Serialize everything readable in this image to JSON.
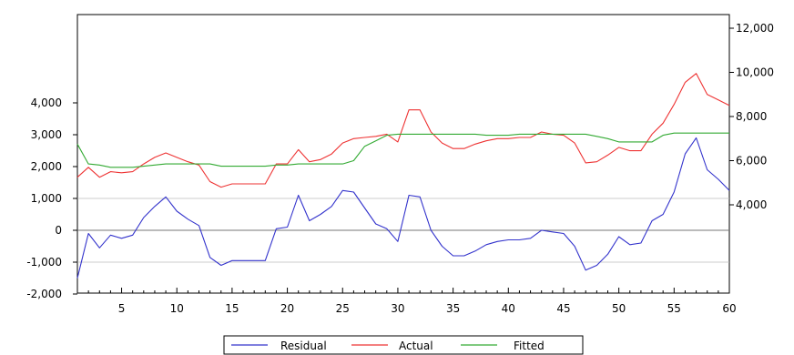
{
  "chart_data": {
    "type": "line",
    "x": [
      1,
      2,
      3,
      4,
      5,
      6,
      7,
      8,
      9,
      10,
      11,
      12,
      13,
      14,
      15,
      16,
      17,
      18,
      19,
      20,
      21,
      22,
      23,
      24,
      25,
      26,
      27,
      28,
      29,
      30,
      31,
      32,
      33,
      34,
      35,
      36,
      37,
      38,
      39,
      40,
      41,
      42,
      43,
      44,
      45,
      46,
      47,
      48,
      49,
      50,
      51,
      52,
      53,
      54,
      55,
      56,
      57,
      58,
      59,
      60
    ],
    "x_ticks": [
      5,
      10,
      15,
      20,
      25,
      30,
      35,
      40,
      45,
      50,
      55,
      60
    ],
    "xlim": [
      1,
      60
    ],
    "left_axis": {
      "ticks": [
        -2000,
        -1000,
        0,
        1000,
        2000,
        3000,
        4000
      ],
      "tick_labels": [
        "-2,000",
        "-1,000",
        "0",
        "1,000",
        "2,000",
        "3,000",
        "4,000"
      ],
      "range": [
        -2000,
        7000
      ]
    },
    "right_axis": {
      "ticks": [
        4000,
        6000,
        8000,
        10000,
        12000
      ],
      "tick_labels": [
        "4,000",
        "6,000",
        "8,000",
        "10,000",
        "12,000"
      ],
      "range": [
        0,
        12000
      ]
    },
    "grid_lines": [
      -1000,
      0,
      1000
    ],
    "series": [
      {
        "name": "Residual",
        "axis": "left",
        "color": "#3333cc",
        "values": [
          -1500,
          -100,
          -550,
          -150,
          -250,
          -150,
          400,
          750,
          1050,
          600,
          350,
          150,
          -850,
          -1100,
          -950,
          -950,
          -950,
          -950,
          50,
          100,
          1100,
          300,
          500,
          750,
          1250,
          1200,
          700,
          200,
          50,
          -350,
          1100,
          1050,
          0,
          -500,
          -800,
          -800,
          -650,
          -450,
          -350,
          -300,
          -300,
          -250,
          0,
          -50,
          -100,
          -500,
          -1250,
          -1100,
          -750,
          -200,
          -450,
          -400,
          300,
          500,
          1200,
          2400,
          2900,
          1900,
          1600,
          1250
        ]
      },
      {
        "name": "Actual",
        "axis": "right",
        "color": "#ee3333",
        "values": [
          5250,
          5700,
          5250,
          5500,
          5450,
          5500,
          5850,
          6150,
          6350,
          6150,
          5950,
          5800,
          5050,
          4800,
          4950,
          4950,
          4950,
          4950,
          5850,
          5850,
          6500,
          5950,
          6050,
          6300,
          6800,
          7000,
          7050,
          7100,
          7200,
          6850,
          8300,
          8300,
          7300,
          6800,
          6550,
          6550,
          6750,
          6900,
          7000,
          7000,
          7050,
          7050,
          7300,
          7200,
          7150,
          6800,
          5900,
          5950,
          6250,
          6600,
          6450,
          6450,
          7200,
          7700,
          8550,
          9550,
          9950,
          9000,
          8750,
          8500
        ]
      },
      {
        "name": "Fitted",
        "axis": "right",
        "color": "#33aa33",
        "values": [
          6750,
          5850,
          5800,
          5700,
          5700,
          5700,
          5750,
          5800,
          5850,
          5850,
          5850,
          5850,
          5850,
          5750,
          5750,
          5750,
          5750,
          5750,
          5800,
          5800,
          5850,
          5850,
          5850,
          5850,
          5850,
          6000,
          6650,
          6900,
          7150,
          7200,
          7200,
          7200,
          7200,
          7200,
          7200,
          7200,
          7200,
          7150,
          7150,
          7150,
          7200,
          7200,
          7200,
          7200,
          7200,
          7200,
          7200,
          7100,
          7000,
          6850,
          6850,
          6850,
          6850,
          7150,
          7250,
          7250,
          7250,
          7250,
          7250,
          7250
        ]
      }
    ],
    "legend": {
      "placement": "bottom-center",
      "labels": [
        "Residual",
        "Actual",
        "Fitted"
      ]
    }
  }
}
